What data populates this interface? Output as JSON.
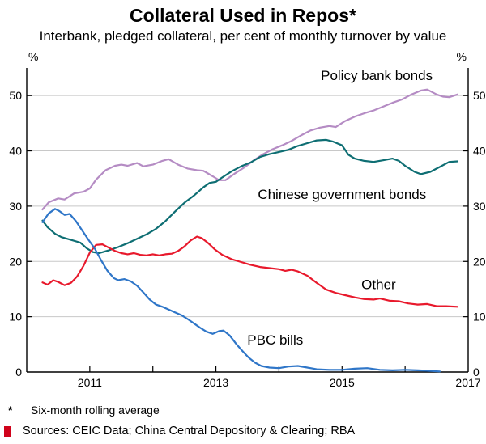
{
  "footnote_marker": "*",
  "footnote_text": "Six-month rolling average",
  "sources": "Sources: CEIC Data; China Central Depository & Clearing; RBA",
  "chart_data": {
    "type": "line",
    "title": "Collateral Used in Repos*",
    "subtitle": "Interbank, pledged collateral, per cent of monthly turnover by value",
    "unit_label": "%",
    "xlim": [
      2010,
      2017
    ],
    "ylim": [
      0,
      55
    ],
    "yticks": [
      0,
      10,
      20,
      30,
      40,
      50
    ],
    "xticks": [
      2011,
      2012,
      2013,
      2014,
      2015,
      2016
    ],
    "xtick_labels": [
      "2011",
      "2013",
      "2015",
      "2017"
    ],
    "xtick_label_positions": [
      2011,
      2013,
      2015,
      2017
    ],
    "grid": true,
    "axis_color": "#000000",
    "grid_color": "#c8c8c8",
    "series": [
      {
        "id": "policy-bank-bonds",
        "name": "Policy bank bonds",
        "color": "#b58cc4",
        "label": {
          "x": 2015.55,
          "y": 52.8
        },
        "points": [
          [
            2010.25,
            29.4
          ],
          [
            2010.35,
            30.7
          ],
          [
            2010.5,
            31.4
          ],
          [
            2010.6,
            31.2
          ],
          [
            2010.75,
            32.3
          ],
          [
            2010.9,
            32.6
          ],
          [
            2011.0,
            33.2
          ],
          [
            2011.1,
            34.8
          ],
          [
            2011.25,
            36.5
          ],
          [
            2011.4,
            37.3
          ],
          [
            2011.5,
            37.5
          ],
          [
            2011.6,
            37.3
          ],
          [
            2011.75,
            37.8
          ],
          [
            2011.85,
            37.2
          ],
          [
            2012.0,
            37.5
          ],
          [
            2012.15,
            38.2
          ],
          [
            2012.25,
            38.5
          ],
          [
            2012.4,
            37.5
          ],
          [
            2012.55,
            36.8
          ],
          [
            2012.7,
            36.5
          ],
          [
            2012.8,
            36.4
          ],
          [
            2012.95,
            35.4
          ],
          [
            2013.05,
            34.7
          ],
          [
            2013.15,
            34.7
          ],
          [
            2013.3,
            35.9
          ],
          [
            2013.45,
            37.0
          ],
          [
            2013.6,
            38.3
          ],
          [
            2013.75,
            39.4
          ],
          [
            2013.9,
            40.3
          ],
          [
            2014.05,
            41.0
          ],
          [
            2014.2,
            41.8
          ],
          [
            2014.35,
            42.8
          ],
          [
            2014.5,
            43.7
          ],
          [
            2014.65,
            44.2
          ],
          [
            2014.8,
            44.5
          ],
          [
            2014.9,
            44.3
          ],
          [
            2015.05,
            45.4
          ],
          [
            2015.2,
            46.2
          ],
          [
            2015.35,
            46.8
          ],
          [
            2015.5,
            47.3
          ],
          [
            2015.65,
            48.0
          ],
          [
            2015.8,
            48.7
          ],
          [
            2015.95,
            49.3
          ],
          [
            2016.1,
            50.2
          ],
          [
            2016.25,
            50.9
          ],
          [
            2016.35,
            51.1
          ],
          [
            2016.5,
            50.2
          ],
          [
            2016.6,
            49.8
          ],
          [
            2016.7,
            49.7
          ],
          [
            2016.83,
            50.2
          ]
        ]
      },
      {
        "id": "chinese-government-bonds",
        "name": "Chinese government bonds",
        "color": "#0e6e73",
        "label": {
          "x": 2015.0,
          "y": 31.3
        },
        "points": [
          [
            2010.25,
            27.4
          ],
          [
            2010.33,
            26.2
          ],
          [
            2010.45,
            25.0
          ],
          [
            2010.55,
            24.4
          ],
          [
            2010.7,
            23.9
          ],
          [
            2010.85,
            23.4
          ],
          [
            2010.95,
            22.4
          ],
          [
            2011.05,
            21.7
          ],
          [
            2011.15,
            21.5
          ],
          [
            2011.3,
            22.0
          ],
          [
            2011.45,
            22.6
          ],
          [
            2011.6,
            23.3
          ],
          [
            2011.75,
            24.1
          ],
          [
            2011.9,
            24.9
          ],
          [
            2012.05,
            25.9
          ],
          [
            2012.2,
            27.3
          ],
          [
            2012.35,
            29.0
          ],
          [
            2012.5,
            30.6
          ],
          [
            2012.65,
            31.9
          ],
          [
            2012.8,
            33.4
          ],
          [
            2012.9,
            34.2
          ],
          [
            2013.0,
            34.4
          ],
          [
            2013.1,
            35.2
          ],
          [
            2013.25,
            36.3
          ],
          [
            2013.4,
            37.2
          ],
          [
            2013.55,
            37.9
          ],
          [
            2013.7,
            38.9
          ],
          [
            2013.85,
            39.4
          ],
          [
            2014.0,
            39.8
          ],
          [
            2014.15,
            40.2
          ],
          [
            2014.3,
            40.9
          ],
          [
            2014.45,
            41.4
          ],
          [
            2014.6,
            41.9
          ],
          [
            2014.75,
            42.0
          ],
          [
            2014.85,
            41.7
          ],
          [
            2015.0,
            41.0
          ],
          [
            2015.1,
            39.3
          ],
          [
            2015.2,
            38.6
          ],
          [
            2015.35,
            38.2
          ],
          [
            2015.5,
            38.0
          ],
          [
            2015.65,
            38.3
          ],
          [
            2015.8,
            38.6
          ],
          [
            2015.9,
            38.2
          ],
          [
            2016.0,
            37.3
          ],
          [
            2016.15,
            36.2
          ],
          [
            2016.25,
            35.8
          ],
          [
            2016.4,
            36.2
          ],
          [
            2016.55,
            37.1
          ],
          [
            2016.7,
            38.0
          ],
          [
            2016.83,
            38.1
          ]
        ]
      },
      {
        "id": "other",
        "name": "Other",
        "color": "#e8192c",
        "label": {
          "x": 2015.58,
          "y": 15.0
        },
        "points": [
          [
            2010.25,
            16.2
          ],
          [
            2010.33,
            15.8
          ],
          [
            2010.42,
            16.6
          ],
          [
            2010.5,
            16.3
          ],
          [
            2010.6,
            15.7
          ],
          [
            2010.7,
            16.1
          ],
          [
            2010.8,
            17.3
          ],
          [
            2010.9,
            19.2
          ],
          [
            2011.0,
            21.6
          ],
          [
            2011.1,
            23.0
          ],
          [
            2011.2,
            23.1
          ],
          [
            2011.3,
            22.5
          ],
          [
            2011.4,
            21.9
          ],
          [
            2011.5,
            21.5
          ],
          [
            2011.6,
            21.3
          ],
          [
            2011.7,
            21.5
          ],
          [
            2011.8,
            21.2
          ],
          [
            2011.9,
            21.1
          ],
          [
            2012.0,
            21.3
          ],
          [
            2012.1,
            21.1
          ],
          [
            2012.2,
            21.3
          ],
          [
            2012.3,
            21.4
          ],
          [
            2012.4,
            21.9
          ],
          [
            2012.5,
            22.7
          ],
          [
            2012.6,
            23.8
          ],
          [
            2012.7,
            24.5
          ],
          [
            2012.78,
            24.2
          ],
          [
            2012.88,
            23.3
          ],
          [
            2012.98,
            22.2
          ],
          [
            2013.1,
            21.2
          ],
          [
            2013.25,
            20.4
          ],
          [
            2013.4,
            19.9
          ],
          [
            2013.55,
            19.4
          ],
          [
            2013.7,
            19.0
          ],
          [
            2013.85,
            18.8
          ],
          [
            2014.0,
            18.6
          ],
          [
            2014.1,
            18.3
          ],
          [
            2014.2,
            18.5
          ],
          [
            2014.3,
            18.2
          ],
          [
            2014.45,
            17.4
          ],
          [
            2014.6,
            16.1
          ],
          [
            2014.75,
            14.9
          ],
          [
            2014.9,
            14.3
          ],
          [
            2015.05,
            13.9
          ],
          [
            2015.2,
            13.5
          ],
          [
            2015.35,
            13.2
          ],
          [
            2015.5,
            13.1
          ],
          [
            2015.6,
            13.3
          ],
          [
            2015.75,
            12.9
          ],
          [
            2015.9,
            12.8
          ],
          [
            2016.05,
            12.4
          ],
          [
            2016.2,
            12.2
          ],
          [
            2016.35,
            12.3
          ],
          [
            2016.5,
            11.9
          ],
          [
            2016.65,
            11.9
          ],
          [
            2016.83,
            11.8
          ]
        ]
      },
      {
        "id": "pbc-bills",
        "name": "PBC bills",
        "color": "#2f76c8",
        "label": {
          "x": 2013.94,
          "y": 5.0
        },
        "points": [
          [
            2010.25,
            27.1
          ],
          [
            2010.35,
            28.7
          ],
          [
            2010.45,
            29.5
          ],
          [
            2010.52,
            29.1
          ],
          [
            2010.6,
            28.4
          ],
          [
            2010.68,
            28.6
          ],
          [
            2010.78,
            27.3
          ],
          [
            2010.88,
            25.6
          ],
          [
            2010.98,
            23.9
          ],
          [
            2011.08,
            22.3
          ],
          [
            2011.18,
            20.2
          ],
          [
            2011.28,
            18.3
          ],
          [
            2011.38,
            17.0
          ],
          [
            2011.45,
            16.6
          ],
          [
            2011.55,
            16.8
          ],
          [
            2011.65,
            16.4
          ],
          [
            2011.75,
            15.6
          ],
          [
            2011.85,
            14.4
          ],
          [
            2011.95,
            13.1
          ],
          [
            2012.05,
            12.2
          ],
          [
            2012.15,
            11.8
          ],
          [
            2012.25,
            11.3
          ],
          [
            2012.35,
            10.8
          ],
          [
            2012.45,
            10.3
          ],
          [
            2012.55,
            9.6
          ],
          [
            2012.65,
            8.8
          ],
          [
            2012.75,
            8.0
          ],
          [
            2012.85,
            7.3
          ],
          [
            2012.95,
            6.9
          ],
          [
            2013.05,
            7.4
          ],
          [
            2013.12,
            7.5
          ],
          [
            2013.22,
            6.6
          ],
          [
            2013.32,
            5.1
          ],
          [
            2013.42,
            3.8
          ],
          [
            2013.52,
            2.6
          ],
          [
            2013.62,
            1.7
          ],
          [
            2013.72,
            1.1
          ],
          [
            2013.85,
            0.8
          ],
          [
            2014.0,
            0.7
          ],
          [
            2014.15,
            1.0
          ],
          [
            2014.3,
            1.1
          ],
          [
            2014.45,
            0.8
          ],
          [
            2014.6,
            0.5
          ],
          [
            2014.8,
            0.4
          ],
          [
            2015.0,
            0.4
          ],
          [
            2015.2,
            0.6
          ],
          [
            2015.4,
            0.7
          ],
          [
            2015.6,
            0.4
          ],
          [
            2015.8,
            0.3
          ],
          [
            2016.0,
            0.4
          ],
          [
            2016.2,
            0.3
          ],
          [
            2016.4,
            0.2
          ],
          [
            2016.55,
            0.1
          ]
        ]
      }
    ]
  }
}
